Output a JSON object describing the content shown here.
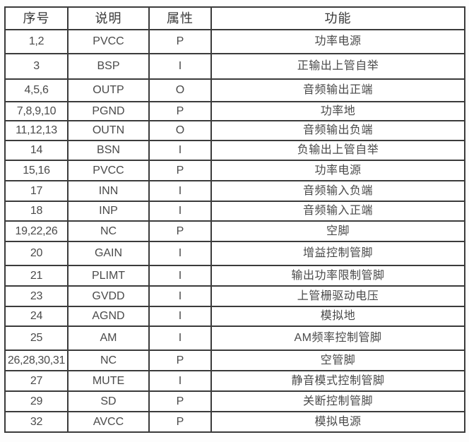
{
  "table": {
    "columns": [
      "序号",
      "说明",
      "属性",
      "功能"
    ],
    "rows": [
      {
        "pins": "1,2",
        "name": "PVCC",
        "attr": "P",
        "func": "功率电源"
      },
      {
        "pins": "3",
        "name": "BSP",
        "attr": "I",
        "func": "正输出上管自举"
      },
      {
        "pins": "4,5,6",
        "name": "OUTP",
        "attr": "O",
        "func": "音频输出正端"
      },
      {
        "pins": "7,8,9,10",
        "name": "PGND",
        "attr": "P",
        "func": "功率地"
      },
      {
        "pins": "11,12,13",
        "name": "OUTN",
        "attr": "O",
        "func": "音频输出负端"
      },
      {
        "pins": "14",
        "name": "BSN",
        "attr": "I",
        "func": "负输出上管自举"
      },
      {
        "pins": "15,16",
        "name": "PVCC",
        "attr": "P",
        "func": "功率电源"
      },
      {
        "pins": "17",
        "name": "INN",
        "attr": "I",
        "func": "音频输入负端"
      },
      {
        "pins": "18",
        "name": "INP",
        "attr": "I",
        "func": "音频输入正端"
      },
      {
        "pins": "19,22,26",
        "name": "NC",
        "attr": "P",
        "func": "空脚"
      },
      {
        "pins": "20",
        "name": "GAIN",
        "attr": "I",
        "func": "增益控制管脚"
      },
      {
        "pins": "21",
        "name": "PLIMT",
        "attr": "I",
        "func": "输出功率限制管脚"
      },
      {
        "pins": "23",
        "name": "GVDD",
        "attr": "I",
        "func": "上管栅驱动电压"
      },
      {
        "pins": "24",
        "name": "AGND",
        "attr": "I",
        "func": "模拟地"
      },
      {
        "pins": "25",
        "name": "AM",
        "attr": "I",
        "func": "AM频率控制管脚"
      },
      {
        "pins": "26,28,30,31",
        "name": "NC",
        "attr": "P",
        "func": "空管脚"
      },
      {
        "pins": "27",
        "name": "MUTE",
        "attr": "I",
        "func": "静音模式控制管脚"
      },
      {
        "pins": "29",
        "name": "SD",
        "attr": "P",
        "func": "关断控制管脚"
      },
      {
        "pins": "32",
        "name": "AVCC",
        "attr": "P",
        "func": "模拟电源"
      }
    ]
  },
  "colors": {
    "border": "#3b3b3b",
    "header_text": "#383838",
    "cell_text": "#4a4a4a",
    "background": "#ffffff"
  }
}
